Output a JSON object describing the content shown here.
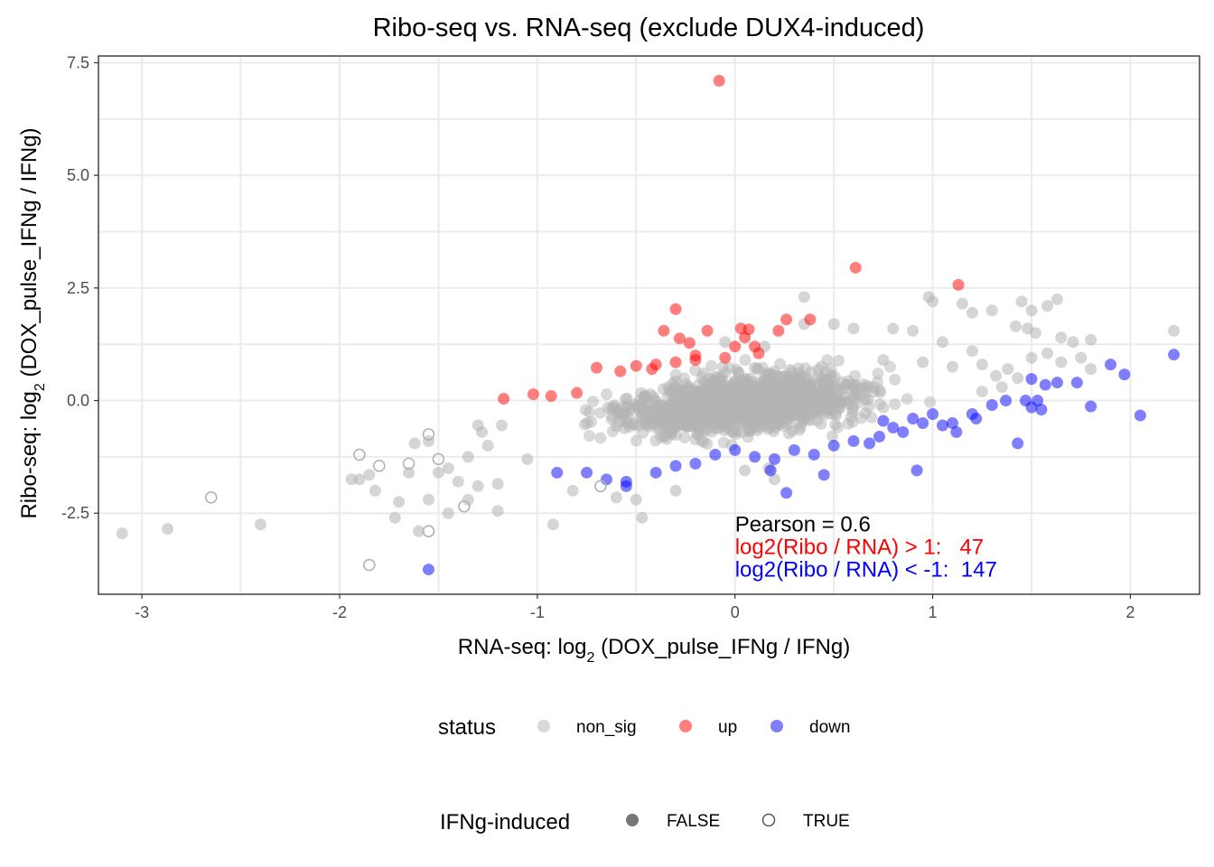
{
  "chart_data": {
    "type": "scatter",
    "title": "Ribo-seq vs. RNA-seq (exclude DUX4-induced)",
    "xlabel": {
      "prefix": "RNA-seq: log",
      "sub": "2",
      "suffix": " (DOX_pulse_IFNg / IFNg)"
    },
    "ylabel": {
      "prefix": "Ribo-seq: log",
      "sub": "2",
      "suffix": " (DOX_pulse_IFNg / IFNg)"
    },
    "xlim": [
      -3.22,
      2.35
    ],
    "ylim": [
      -4.3,
      7.65
    ],
    "x_ticks": [
      -3,
      -2,
      -1,
      0,
      1,
      2
    ],
    "x_tick_labels": [
      "-3",
      "-2",
      "-1",
      "0",
      "1",
      "2"
    ],
    "y_ticks": [
      -2.5,
      0,
      2.5,
      5,
      7.5
    ],
    "y_tick_labels": [
      "-2.5",
      "0.0",
      "2.5",
      "5.0",
      "7.5"
    ],
    "grid": true,
    "colors": {
      "non_sig": "#b3b3b3",
      "up": "#ff0000",
      "down": "#0000ff",
      "legend_shape": "#555555"
    },
    "bulk_band": {
      "slope": 0.47,
      "intercept": -0.08,
      "note": "dense grey cloud of non_sig genes along the fitted trend"
    },
    "series": [
      {
        "name": "up",
        "points": [
          [
            -0.08,
            7.1
          ],
          [
            0.61,
            2.95
          ],
          [
            1.13,
            2.57
          ],
          [
            -0.3,
            2.03
          ],
          [
            0.07,
            1.58
          ],
          [
            -0.36,
            1.55
          ],
          [
            0.26,
            1.8
          ],
          [
            0.38,
            1.8
          ],
          [
            -0.28,
            1.38
          ],
          [
            -0.14,
            1.55
          ],
          [
            -0.23,
            1.28
          ],
          [
            0.05,
            1.4
          ],
          [
            0.1,
            1.2
          ],
          [
            -0.7,
            0.73
          ],
          [
            -0.58,
            0.65
          ],
          [
            -0.5,
            0.77
          ],
          [
            -0.4,
            0.8
          ],
          [
            -0.42,
            0.7
          ],
          [
            -1.17,
            0.04
          ],
          [
            -1.02,
            0.14
          ],
          [
            -0.93,
            0.1
          ],
          [
            -0.8,
            0.17
          ],
          [
            -0.2,
            1.0
          ],
          [
            -0.2,
            0.9
          ],
          [
            0.03,
            1.6
          ],
          [
            0.22,
            1.55
          ],
          [
            -0.05,
            0.95
          ],
          [
            0.12,
            1.05
          ],
          [
            -0.3,
            0.85
          ],
          [
            0.0,
            1.2
          ]
        ]
      },
      {
        "name": "down",
        "points": [
          [
            -1.55,
            -3.75
          ],
          [
            2.22,
            1.02
          ],
          [
            2.05,
            -0.33
          ],
          [
            1.97,
            0.58
          ],
          [
            1.9,
            0.8
          ],
          [
            1.8,
            -0.13
          ],
          [
            1.73,
            0.4
          ],
          [
            1.63,
            0.4
          ],
          [
            1.5,
            0.48
          ],
          [
            1.57,
            0.35
          ],
          [
            1.55,
            -0.2
          ],
          [
            1.53,
            0.0
          ],
          [
            1.5,
            -0.15
          ],
          [
            1.47,
            0.0
          ],
          [
            1.43,
            -0.95
          ],
          [
            1.37,
            0.0
          ],
          [
            1.3,
            -0.1
          ],
          [
            1.22,
            -0.4
          ],
          [
            1.12,
            -0.7
          ],
          [
            1.1,
            -0.5
          ],
          [
            1.0,
            -0.3
          ],
          [
            0.95,
            -0.5
          ],
          [
            0.9,
            -0.4
          ],
          [
            0.8,
            -0.6
          ],
          [
            0.73,
            -0.8
          ],
          [
            0.6,
            -0.9
          ],
          [
            0.5,
            -1.0
          ],
          [
            0.4,
            -1.2
          ],
          [
            0.3,
            -1.1
          ],
          [
            0.2,
            -1.3
          ],
          [
            0.1,
            -1.25
          ],
          [
            0.0,
            -1.1
          ],
          [
            -0.1,
            -1.2
          ],
          [
            -0.2,
            -1.4
          ],
          [
            -0.3,
            -1.45
          ],
          [
            -0.4,
            -1.6
          ],
          [
            -0.55,
            -1.9
          ],
          [
            -0.65,
            -1.75
          ],
          [
            -0.75,
            -1.6
          ],
          [
            -0.55,
            -1.8
          ],
          [
            -0.9,
            -1.6
          ],
          [
            0.26,
            -2.05
          ],
          [
            0.92,
            -1.55
          ],
          [
            0.45,
            -1.65
          ],
          [
            0.18,
            -1.55
          ],
          [
            0.68,
            -0.95
          ],
          [
            0.85,
            -0.7
          ],
          [
            1.05,
            -0.55
          ],
          [
            0.75,
            -0.45
          ],
          [
            1.2,
            -0.3
          ]
        ]
      },
      {
        "name": "non_sig",
        "points": [
          [
            -3.1,
            -2.95
          ],
          [
            -2.87,
            -2.85
          ],
          [
            -2.4,
            -2.75
          ],
          [
            -1.85,
            -1.65
          ],
          [
            -1.82,
            -2.0
          ],
          [
            -1.7,
            -2.25
          ],
          [
            -1.65,
            -1.6
          ],
          [
            -1.72,
            -2.6
          ],
          [
            -1.6,
            -2.9
          ],
          [
            -1.5,
            -1.6
          ],
          [
            -1.4,
            -1.8
          ],
          [
            -1.3,
            -1.9
          ],
          [
            -1.2,
            -1.85
          ],
          [
            -1.05,
            -1.3
          ],
          [
            -1.2,
            -2.45
          ],
          [
            -0.92,
            -2.75
          ],
          [
            -0.47,
            -2.6
          ],
          [
            -1.94,
            -1.75
          ],
          [
            -1.9,
            -1.75
          ],
          [
            -1.55,
            -0.9
          ],
          [
            -1.62,
            -0.95
          ],
          [
            -1.45,
            -1.5
          ],
          [
            -1.35,
            -1.25
          ],
          [
            -1.28,
            -0.7
          ],
          [
            -1.25,
            -1.0
          ],
          [
            -1.18,
            -0.55
          ],
          [
            0.35,
            2.3
          ],
          [
            0.98,
            2.3
          ],
          [
            1.0,
            2.2
          ],
          [
            1.15,
            2.15
          ],
          [
            1.2,
            1.95
          ],
          [
            1.3,
            2.0
          ],
          [
            1.45,
            2.2
          ],
          [
            1.5,
            2.0
          ],
          [
            1.58,
            2.1
          ],
          [
            1.63,
            2.25
          ],
          [
            1.8,
            1.35
          ],
          [
            1.48,
            1.6
          ],
          [
            1.42,
            1.65
          ],
          [
            1.52,
            1.5
          ],
          [
            1.65,
            1.4
          ],
          [
            1.71,
            1.3
          ],
          [
            1.58,
            1.05
          ],
          [
            1.38,
            0.7
          ],
          [
            1.43,
            0.5
          ],
          [
            1.5,
            0.95
          ],
          [
            1.65,
            0.85
          ],
          [
            1.75,
            0.95
          ],
          [
            1.8,
            0.7
          ],
          [
            2.22,
            1.55
          ],
          [
            0.8,
            1.6
          ],
          [
            0.9,
            1.55
          ],
          [
            1.05,
            1.3
          ],
          [
            1.2,
            1.1
          ],
          [
            1.25,
            0.8
          ],
          [
            1.32,
            0.55
          ],
          [
            0.5,
            1.7
          ],
          [
            0.6,
            1.6
          ],
          [
            0.35,
            1.7
          ],
          [
            0.15,
            1.2
          ],
          [
            -0.05,
            1.3
          ],
          [
            -0.6,
            -2.15
          ],
          [
            -0.3,
            -2.0
          ],
          [
            0.2,
            -1.75
          ],
          [
            -0.82,
            -2.0
          ],
          [
            -0.5,
            -2.2
          ],
          [
            0.17,
            -1.5
          ],
          [
            0.05,
            -1.55
          ],
          [
            -1.3,
            -0.55
          ],
          [
            -1.35,
            -2.2
          ],
          [
            -1.45,
            -2.5
          ],
          [
            -1.55,
            -2.2
          ],
          [
            0.75,
            0.9
          ],
          [
            0.95,
            0.85
          ],
          [
            1.1,
            0.75
          ],
          [
            1.25,
            0.2
          ],
          [
            1.35,
            0.3
          ]
        ]
      }
    ],
    "ifng_true_points": [
      [
        -2.65,
        -2.15
      ],
      [
        -1.85,
        -3.65
      ],
      [
        -1.55,
        -2.9
      ],
      [
        -1.9,
        -1.2
      ],
      [
        -1.5,
        -1.3
      ],
      [
        -1.55,
        -0.75
      ],
      [
        -1.65,
        -1.4
      ],
      [
        -1.8,
        -1.45
      ],
      [
        -0.68,
        -1.9
      ],
      [
        -1.37,
        -2.35
      ]
    ],
    "annotations": [
      {
        "text": "Pearson = 0.6",
        "x": 0.0,
        "y": -2.75,
        "color": "#000000"
      },
      {
        "text": "log2(Ribo / RNA) > 1:   47",
        "x": 0.0,
        "y": -3.25,
        "color": "#ff0000"
      },
      {
        "text": "log2(Ribo / RNA) < -1:  147",
        "x": 0.0,
        "y": -3.75,
        "color": "#0000ff"
      }
    ],
    "legend_status": {
      "title": "status",
      "items": [
        {
          "label": "non_sig",
          "key": "non_sig"
        },
        {
          "label": "up",
          "key": "up"
        },
        {
          "label": "down",
          "key": "down"
        }
      ]
    },
    "legend_ifng": {
      "title": "IFNg-induced",
      "items": [
        {
          "label": "FALSE",
          "shape": "filled-circle"
        },
        {
          "label": "TRUE",
          "shape": "open-circle"
        }
      ]
    },
    "legend_position": "bottom"
  }
}
